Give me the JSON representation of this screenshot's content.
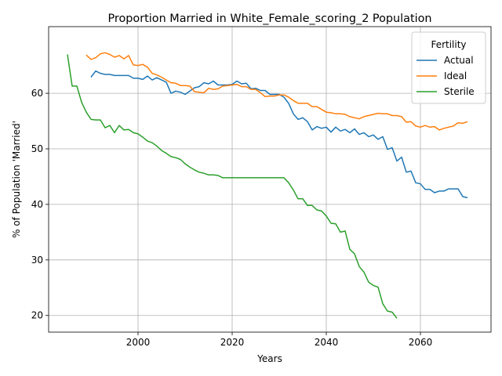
{
  "chart_data": {
    "type": "line",
    "title": "Proportion Married in White_Female_scoring_2 Population",
    "xlabel": "Years",
    "ylabel": "% of Population 'Married'",
    "xlim": [
      1981,
      2075
    ],
    "ylim": [
      17,
      72
    ],
    "xticks": [
      2000,
      2020,
      2040,
      2060
    ],
    "yticks": [
      20,
      30,
      40,
      50,
      60
    ],
    "grid": true,
    "legend": {
      "title": "Fertility",
      "placement": "top-right"
    },
    "series": [
      {
        "name": "Actual",
        "color": "#1f77b4",
        "x": [
          1990,
          1991,
          1992,
          1993,
          1994,
          1995,
          1996,
          1997,
          1998,
          1999,
          2000,
          2001,
          2002,
          2003,
          2004,
          2005,
          2006,
          2007,
          2008,
          2009,
          2010,
          2011,
          2012,
          2013,
          2014,
          2015,
          2016,
          2017,
          2018,
          2019,
          2020,
          2021,
          2022,
          2023,
          2024,
          2025,
          2026,
          2027,
          2028,
          2029,
          2030,
          2031,
          2032,
          2033,
          2034,
          2035,
          2036,
          2037,
          2038,
          2039,
          2040,
          2041,
          2042,
          2043,
          2044,
          2045,
          2046,
          2047,
          2048,
          2049,
          2050,
          2051,
          2052,
          2053,
          2054,
          2055,
          2056,
          2057,
          2058,
          2059,
          2060,
          2061,
          2062,
          2063,
          2064,
          2065,
          2066,
          2067,
          2068,
          2069,
          2070
        ],
        "values": [
          62.9,
          64.0,
          63.6,
          63.4,
          63.4,
          63.2,
          63.2,
          63.2,
          63.2,
          62.7,
          62.7,
          62.5,
          63.1,
          62.4,
          62.8,
          62.4,
          62.0,
          60.0,
          60.4,
          60.2,
          59.8,
          60.4,
          61.0,
          61.2,
          61.9,
          61.7,
          62.2,
          61.5,
          61.5,
          61.5,
          61.6,
          62.2,
          61.7,
          61.8,
          60.8,
          60.9,
          60.5,
          60.5,
          59.8,
          59.8,
          59.8,
          59.3,
          58.2,
          56.3,
          55.3,
          55.6,
          54.9,
          53.4,
          54.0,
          53.7,
          53.9,
          53.0,
          53.9,
          53.2,
          53.5,
          52.9,
          53.6,
          52.6,
          52.9,
          52.2,
          52.5,
          51.7,
          52.2,
          49.9,
          50.2,
          47.8,
          48.5,
          45.8,
          46.0,
          43.9,
          43.7,
          42.7,
          42.7,
          42.1,
          42.4,
          42.4,
          42.8,
          42.8,
          42.8,
          41.4,
          41.2
        ]
      },
      {
        "name": "Ideal",
        "color": "#ff7f0e",
        "x": [
          1989,
          1990,
          1991,
          1992,
          1993,
          1994,
          1995,
          1996,
          1997,
          1998,
          1999,
          2000,
          2001,
          2002,
          2003,
          2004,
          2005,
          2006,
          2007,
          2008,
          2009,
          2010,
          2011,
          2012,
          2013,
          2014,
          2015,
          2016,
          2017,
          2018,
          2019,
          2020,
          2021,
          2022,
          2023,
          2024,
          2025,
          2026,
          2027,
          2028,
          2029,
          2030,
          2031,
          2032,
          2033,
          2034,
          2035,
          2036,
          2037,
          2038,
          2039,
          2040,
          2041,
          2042,
          2043,
          2044,
          2045,
          2046,
          2047,
          2048,
          2049,
          2050,
          2051,
          2052,
          2053,
          2054,
          2055,
          2056,
          2057,
          2058,
          2059,
          2060,
          2061,
          2062,
          2063,
          2064,
          2065,
          2066,
          2067,
          2068,
          2069,
          2070
        ],
        "values": [
          66.9,
          66.1,
          66.4,
          67.1,
          67.3,
          67.0,
          66.5,
          66.8,
          66.2,
          66.8,
          65.1,
          65.0,
          65.2,
          64.7,
          63.6,
          63.3,
          62.9,
          62.4,
          61.9,
          61.8,
          61.4,
          61.4,
          61.3,
          60.3,
          60.2,
          60.1,
          60.9,
          60.7,
          60.8,
          61.3,
          61.4,
          61.5,
          61.6,
          61.2,
          61.2,
          60.7,
          60.7,
          60.1,
          59.4,
          59.5,
          59.5,
          59.7,
          59.7,
          59.3,
          58.7,
          58.2,
          58.2,
          58.2,
          57.6,
          57.6,
          57.1,
          56.6,
          56.5,
          56.3,
          56.3,
          56.2,
          55.8,
          55.6,
          55.4,
          55.8,
          56.0,
          56.2,
          56.4,
          56.3,
          56.3,
          56.0,
          56.0,
          55.8,
          54.8,
          54.9,
          54.1,
          53.9,
          54.2,
          53.9,
          54.0,
          53.4,
          53.7,
          53.9,
          54.1,
          54.7,
          54.6,
          54.9
        ]
      },
      {
        "name": "Sterile",
        "color": "#2ca02c",
        "x": [
          1985,
          1986,
          1987,
          1988,
          1989,
          1990,
          1991,
          1992,
          1993,
          1994,
          1995,
          1996,
          1997,
          1998,
          1999,
          2000,
          2001,
          2002,
          2003,
          2004,
          2005,
          2006,
          2007,
          2008,
          2009,
          2010,
          2011,
          2012,
          2013,
          2014,
          2015,
          2016,
          2017,
          2018,
          2019,
          2020,
          2021,
          2022,
          2023,
          2024,
          2025,
          2026,
          2027,
          2028,
          2029,
          2030,
          2031,
          2032,
          2033,
          2034,
          2035,
          2036,
          2037,
          2038,
          2039,
          2040,
          2041,
          2042,
          2043,
          2044,
          2045,
          2046,
          2047,
          2048,
          2049,
          2050,
          2051,
          2052,
          2053,
          2054,
          2055
        ],
        "values": [
          67.0,
          61.3,
          61.3,
          58.4,
          56.6,
          55.3,
          55.2,
          55.2,
          53.8,
          54.2,
          52.9,
          54.2,
          53.4,
          53.5,
          52.9,
          52.7,
          52.1,
          51.4,
          51.1,
          50.5,
          49.7,
          49.2,
          48.6,
          48.4,
          48.1,
          47.3,
          46.7,
          46.2,
          45.8,
          45.6,
          45.3,
          45.3,
          45.2,
          44.8,
          44.8,
          44.8,
          44.8,
          44.8,
          44.8,
          44.8,
          44.8,
          44.8,
          44.8,
          44.8,
          44.8,
          44.8,
          44.8,
          43.9,
          42.6,
          41.0,
          41.0,
          39.8,
          39.8,
          39.0,
          38.8,
          37.9,
          36.6,
          36.5,
          35.0,
          35.2,
          31.9,
          31.1,
          28.8,
          27.8,
          26.0,
          25.4,
          25.1,
          22.1,
          20.8,
          20.6,
          19.5
        ]
      }
    ]
  }
}
